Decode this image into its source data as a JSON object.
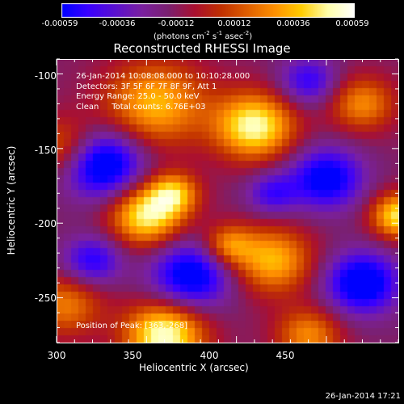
{
  "colorbar": {
    "ticks": [
      "-0.00059",
      "-0.00036",
      "-0.00012",
      "0.00012",
      "0.00036",
      "0.00059"
    ],
    "units_main": "(photons cm",
    "units_sup1": "-2",
    "units_mid1": " s",
    "units_sup2": "-1",
    "units_mid2": " asec",
    "units_sup3": "-2",
    "units_end": ")",
    "colors": [
      "#0000ff",
      "#3a00ff",
      "#5a10d0",
      "#7a20a0",
      "#7a2070",
      "#aa1030",
      "#c03000",
      "#e06000",
      "#ff9000",
      "#ffcc00",
      "#ffffaa",
      "#ffffff"
    ]
  },
  "title": "Reconstructed RHESSI Image",
  "info": {
    "line1": "26-Jan-2014 10:08:08.000 to 10:10:28.000",
    "line2": "Detectors: 3F 5F 6F 7F 8F 9F, Att 1",
    "line3": "Energy Range: 25.0 - 50.0 keV",
    "line4": "Clean     Total counts: 6.76E+03"
  },
  "peak": "Position of Peak: [363,-268]",
  "axes": {
    "xlabel": "Heliocentric X (arcsec)",
    "ylabel": "Heliocentric Y (arcsec)",
    "xticks": [
      "300",
      "350",
      "400",
      "450"
    ],
    "yticks": [
      "-100",
      "-150",
      "-200",
      "-250"
    ],
    "xrange": [
      300,
      490
    ],
    "yrange": [
      -280,
      -90
    ]
  },
  "footer_date": "26-Jan-2014 17:21",
  "map_blobs": [
    {
      "x": 355,
      "y": -120,
      "r": 28,
      "v": 0.75
    },
    {
      "x": 410,
      "y": -135,
      "r": 22,
      "v": 1.0
    },
    {
      "x": 350,
      "y": -195,
      "r": 20,
      "v": 0.95
    },
    {
      "x": 365,
      "y": -180,
      "r": 14,
      "v": 0.7
    },
    {
      "x": 420,
      "y": -225,
      "r": 22,
      "v": 0.75
    },
    {
      "x": 305,
      "y": -150,
      "r": 20,
      "v": 0.55
    },
    {
      "x": 305,
      "y": -255,
      "r": 20,
      "v": 0.55
    },
    {
      "x": 360,
      "y": -275,
      "r": 22,
      "v": 1.05
    },
    {
      "x": 440,
      "y": -275,
      "r": 18,
      "v": 0.6
    },
    {
      "x": 490,
      "y": -195,
      "r": 15,
      "v": 0.9
    },
    {
      "x": 470,
      "y": -120,
      "r": 18,
      "v": 0.6
    },
    {
      "x": 395,
      "y": -215,
      "r": 14,
      "v": 0.6
    },
    {
      "x": 325,
      "y": -160,
      "r": 22,
      "v": -1.0
    },
    {
      "x": 375,
      "y": -235,
      "r": 22,
      "v": -0.85
    },
    {
      "x": 450,
      "y": -170,
      "r": 20,
      "v": -0.8
    },
    {
      "x": 470,
      "y": -240,
      "r": 20,
      "v": -0.9
    },
    {
      "x": 440,
      "y": -105,
      "r": 16,
      "v": -0.55
    },
    {
      "x": 320,
      "y": -225,
      "r": 16,
      "v": -0.6
    },
    {
      "x": 420,
      "y": -180,
      "r": 14,
      "v": -0.5
    }
  ]
}
